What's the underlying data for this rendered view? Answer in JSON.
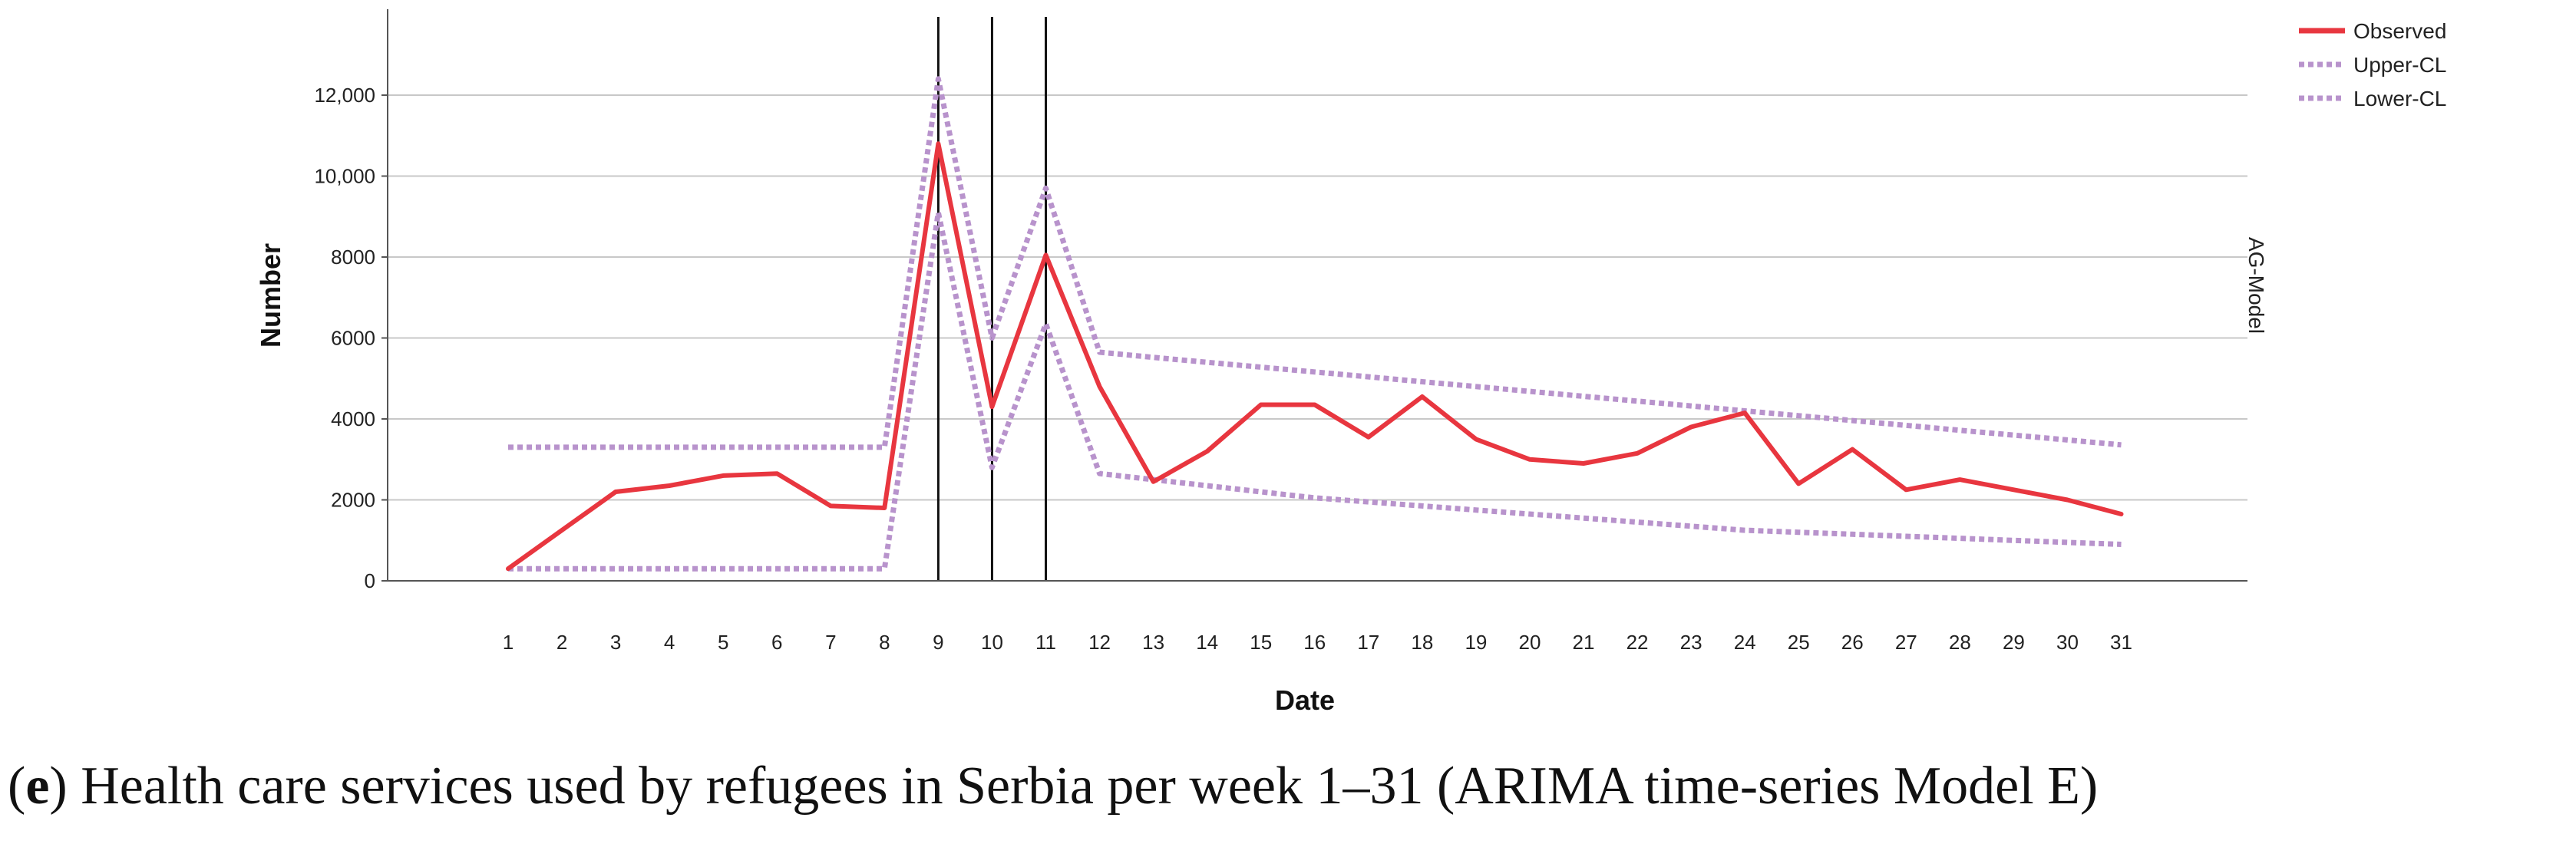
{
  "chart_data": {
    "type": "line",
    "xlabel": "Date",
    "ylabel": "Number",
    "side_label": "AG-Model",
    "x": [
      1,
      2,
      3,
      4,
      5,
      6,
      7,
      8,
      9,
      10,
      11,
      12,
      13,
      14,
      15,
      16,
      17,
      18,
      19,
      20,
      21,
      22,
      23,
      24,
      25,
      26,
      27,
      28,
      29,
      30,
      31
    ],
    "ylim": [
      0,
      14000
    ],
    "yticks": [
      {
        "value": 0,
        "label": "0"
      },
      {
        "value": 2000,
        "label": "2000"
      },
      {
        "value": 4000,
        "label": "4000"
      },
      {
        "value": 6000,
        "label": "6000"
      },
      {
        "value": 8000,
        "label": "8000"
      },
      {
        "value": 10000,
        "label": "10,000"
      },
      {
        "value": 12000,
        "label": "12,000"
      }
    ],
    "vertical_lines": [
      9,
      10,
      11
    ],
    "series": [
      {
        "name": "Observed",
        "color": "#e8363f",
        "style": "solid",
        "values": [
          300,
          1250,
          2200,
          2350,
          2600,
          2650,
          1850,
          1800,
          10800,
          4300,
          8050,
          4800,
          2450,
          3200,
          4350,
          4350,
          3550,
          4550,
          3500,
          3000,
          2900,
          3150,
          3800,
          4150,
          2400,
          3250,
          2250,
          2500,
          2250,
          2000,
          1650
        ]
      },
      {
        "name": "Upper-CL",
        "color": "#b893cc",
        "style": "dotted",
        "values": [
          3300,
          3300,
          3300,
          3300,
          3300,
          3300,
          3300,
          3300,
          12400,
          6000,
          9700,
          5650,
          5520,
          5400,
          5280,
          5160,
          5040,
          4920,
          4800,
          4680,
          4560,
          4440,
          4320,
          4200,
          4080,
          3960,
          3840,
          3720,
          3600,
          3480,
          3360
        ]
      },
      {
        "name": "Lower-CL",
        "color": "#b893cc",
        "style": "dotted",
        "values": [
          300,
          300,
          300,
          300,
          300,
          300,
          300,
          300,
          9100,
          2800,
          6350,
          2650,
          2500,
          2350,
          2200,
          2050,
          1950,
          1850,
          1750,
          1650,
          1550,
          1450,
          1350,
          1250,
          1200,
          1150,
          1100,
          1050,
          1000,
          950,
          900
        ]
      }
    ]
  },
  "caption": {
    "label": "e",
    "text": ") Health care services used by refugees in Serbia per week 1–31 (ARIMA time-series Model E)"
  }
}
